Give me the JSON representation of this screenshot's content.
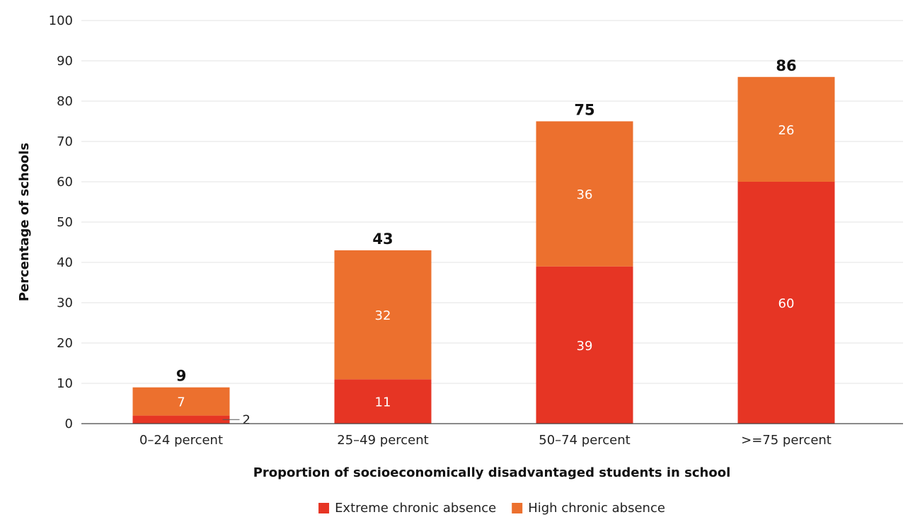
{
  "chart_data": {
    "type": "bar",
    "stacked": true,
    "title": "",
    "xlabel": "Proportion of socioeconomically disadvantaged students in school",
    "ylabel": "Percentage of schools",
    "ylim": [
      0,
      100
    ],
    "yticks": [
      "0",
      "10",
      "20",
      "30",
      "40",
      "50",
      "60",
      "70",
      "80",
      "90",
      "100"
    ],
    "categories": [
      "0–24 percent",
      "25–49 percent",
      "50–74 percent",
      ">=75 percent"
    ],
    "series": [
      {
        "name": "Extreme chronic absence",
        "color": "#e63524",
        "values": [
          2,
          11,
          39,
          60
        ],
        "labels": [
          "2",
          "11",
          "39",
          "60"
        ]
      },
      {
        "name": "High chronic absence",
        "color": "#ec702e",
        "values": [
          7,
          32,
          36,
          26
        ],
        "labels": [
          "7",
          "32",
          "36",
          "26"
        ]
      }
    ],
    "totals": [
      9,
      43,
      75,
      86
    ],
    "total_labels": [
      "9",
      "43",
      "75",
      "86"
    ],
    "grid": true,
    "legend_position": "bottom"
  }
}
